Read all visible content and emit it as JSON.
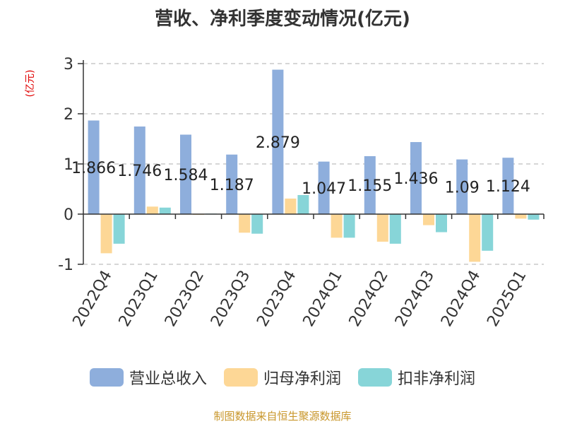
{
  "chart_data": {
    "type": "bar",
    "title": "营收、净利季度变动情况(亿元)",
    "ylabel": "(亿元)",
    "ylim": [
      -1,
      3
    ],
    "yticks": [
      "3",
      "2",
      "1",
      "0",
      "-1"
    ],
    "grid": true,
    "legend_position": "bottom",
    "categories": [
      "2022Q4",
      "2023Q1",
      "2023Q2",
      "2023Q3",
      "2023Q4",
      "2024Q1",
      "2024Q2",
      "2024Q3",
      "2024Q4",
      "2025Q1"
    ],
    "series": [
      {
        "name": "营业总收入",
        "color": "#8eaedc",
        "values": [
          1.866,
          1.746,
          1.584,
          1.187,
          2.879,
          1.047,
          1.155,
          1.436,
          1.09,
          1.124
        ],
        "labels": [
          "1.866",
          "1.746",
          "1.584",
          "1.187",
          "2.879",
          "1.047",
          "1.155",
          "1.436",
          "1.09",
          "1.124"
        ]
      },
      {
        "name": "归母净利润",
        "color": "#fdd796",
        "values": [
          -0.78,
          0.15,
          0.0,
          -0.37,
          0.31,
          -0.47,
          -0.55,
          -0.22,
          -0.95,
          -0.09
        ]
      },
      {
        "name": "扣非净利润",
        "color": "#87d5d8",
        "values": [
          -0.59,
          0.13,
          0.01,
          -0.39,
          0.38,
          -0.47,
          -0.59,
          -0.36,
          -0.73,
          -0.11
        ]
      }
    ]
  },
  "source": "制图数据来自恒生聚源数据库"
}
